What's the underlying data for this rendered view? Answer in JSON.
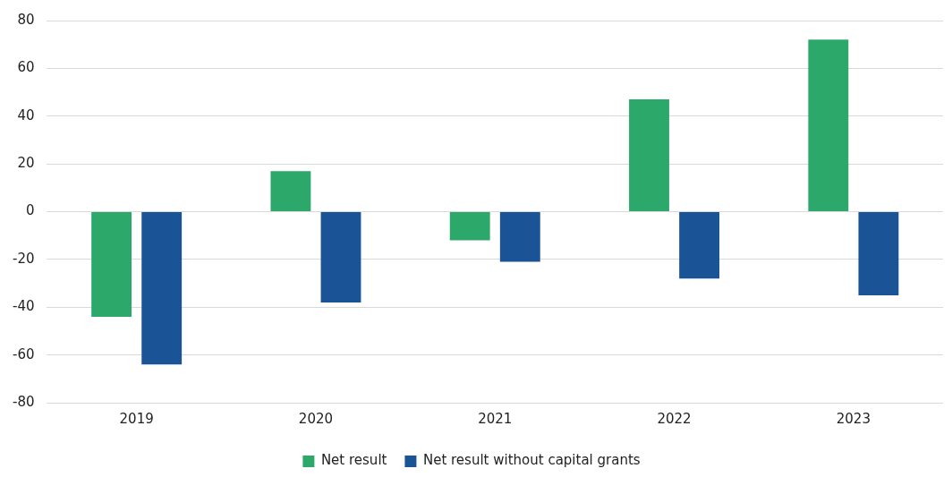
{
  "chart_data": {
    "type": "bar",
    "categories": [
      "2019",
      "2020",
      "2021",
      "2022",
      "2023"
    ],
    "series": [
      {
        "name": "Net result",
        "color": "#2ca86b",
        "values": [
          -44,
          17,
          -12,
          47,
          72
        ]
      },
      {
        "name": "Net result without capital grants",
        "color": "#1b5496",
        "values": [
          -64,
          -38,
          -21,
          -28,
          -35
        ]
      }
    ],
    "ylim": [
      -80,
      80
    ],
    "yticks": [
      -80,
      -60,
      -40,
      -20,
      0,
      20,
      40,
      60,
      80
    ],
    "grid": "y",
    "legend": "bottom"
  }
}
